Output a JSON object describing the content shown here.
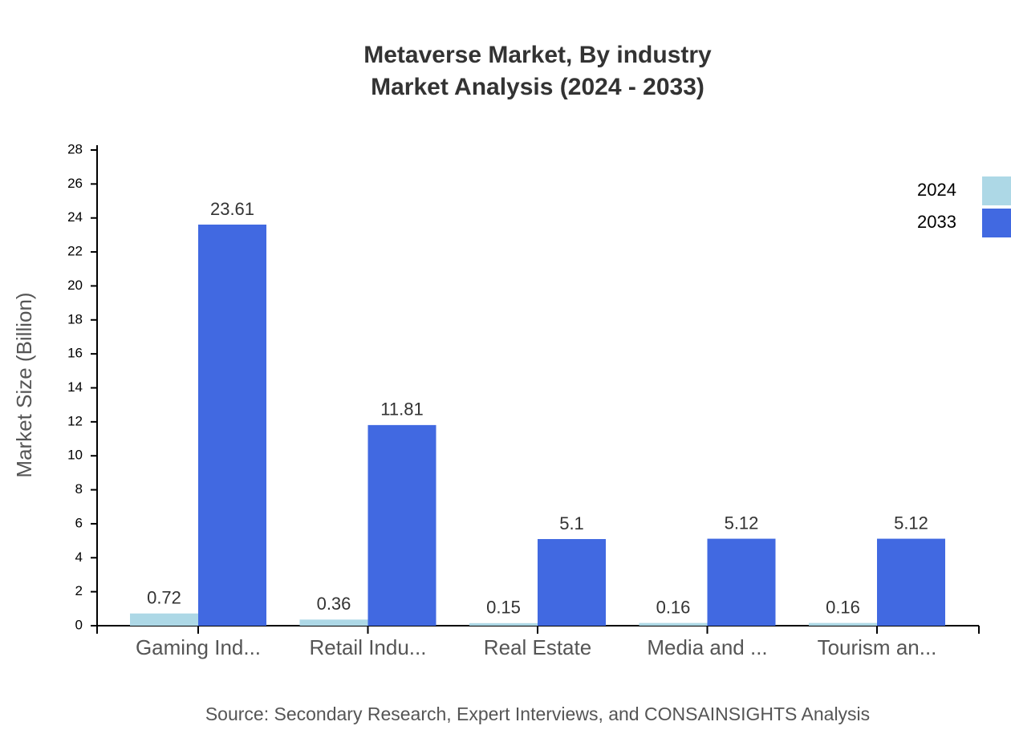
{
  "chart_data": {
    "type": "bar",
    "title": "Metaverse Market, By industry",
    "subtitle": "Market Analysis (2024 - 2033)",
    "y_label": "Market Size (Billion)",
    "source": "Source: Secondary Research, Expert Interviews, and CONSAINSIGHTS Analysis",
    "categories": [
      "Gaming Ind...",
      "Retail Indu...",
      "Real Estate",
      "Media and ...",
      "Tourism an..."
    ],
    "series": [
      {
        "name": "2024",
        "color": "#add8e6",
        "values": [
          0.72,
          0.36,
          0.15,
          0.16,
          0.16
        ]
      },
      {
        "name": "2033",
        "color": "#4169e1",
        "values": [
          23.61,
          11.81,
          5.1,
          5.12,
          5.12
        ]
      }
    ],
    "ylim": [
      0,
      28
    ],
    "yticks": [
      0,
      2,
      4,
      6,
      8,
      10,
      12,
      14,
      16,
      18,
      20,
      22,
      24,
      26,
      28
    ]
  }
}
